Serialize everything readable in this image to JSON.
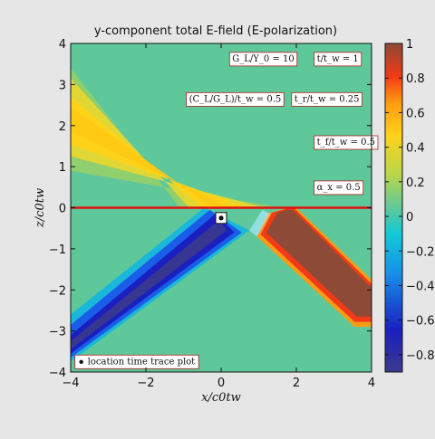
{
  "chart_data": {
    "type": "heatmap",
    "title": "y-component total E-field (E-polarization)",
    "xlabel": "x/c0tw",
    "ylabel": "z/c0tw",
    "xlim": [
      -4,
      4
    ],
    "ylim": [
      -4,
      4
    ],
    "xticks": [
      "−4",
      "−2",
      "0",
      "2",
      "4"
    ],
    "yticks": [
      "4",
      "3",
      "2",
      "1",
      "0",
      "−1",
      "−2",
      "−3",
      "−4"
    ],
    "colorbar": {
      "range": [
        -0.9,
        1.0
      ],
      "ticks": [
        "1",
        "0.8",
        "0.6",
        "0.4",
        "0.2",
        "0",
        "−0.2",
        "−0.4",
        "−0.6",
        "−0.8"
      ],
      "colormap": "jet"
    },
    "background_value": 0.0,
    "interface_z": 0,
    "interface_color": "#e01010",
    "fields": [
      {
        "name": "incident",
        "region": "z>0",
        "direction": "from upper-left, angle ~30° below horizontal",
        "peak_value": 0.5
      },
      {
        "name": "reflected",
        "region": "z<0",
        "direction": "down-left",
        "peak_value": -0.9
      },
      {
        "name": "transmitted",
        "region": "z<0",
        "direction": "down-right",
        "peak_value": 1.0
      }
    ],
    "marker": {
      "x": 0,
      "z": -0.25,
      "label": "location time trace plot"
    },
    "annotations": [
      {
        "id": "gl",
        "text": "G_L/Y_0 = 10"
      },
      {
        "id": "t",
        "text": "t/t_w = 1"
      },
      {
        "id": "cl",
        "text": "(C_L/G_L)/t_w = 0.5"
      },
      {
        "id": "tr",
        "text": "t_r/t_w = 0.25"
      },
      {
        "id": "tf",
        "text": "t_f/t_w = 0.5"
      },
      {
        "id": "ax",
        "text": "α_x = 0.5"
      }
    ],
    "legend_text": "location time trace plot"
  }
}
